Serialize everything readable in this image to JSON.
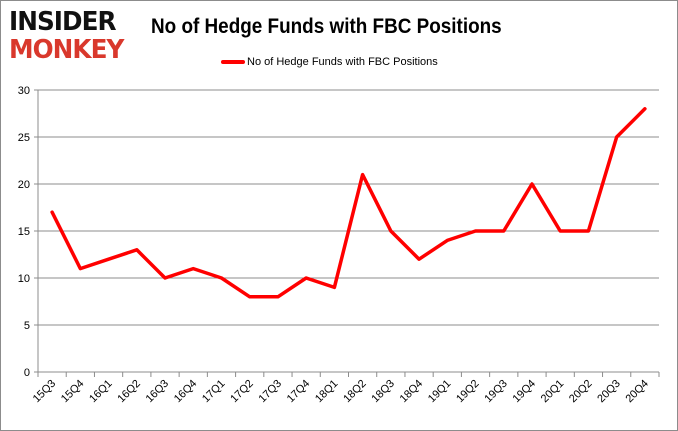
{
  "logo": {
    "line1": "INSIDER",
    "line2": "MONKEY"
  },
  "chart_data": {
    "type": "line",
    "title": "No of Hedge Funds with FBC Positions",
    "xlabel": "",
    "ylabel": "",
    "categories": [
      "15Q3",
      "15Q4",
      "16Q1",
      "16Q2",
      "16Q3",
      "16Q4",
      "17Q1",
      "17Q2",
      "17Q3",
      "17Q4",
      "18Q1",
      "18Q2",
      "18Q3",
      "18Q4",
      "19Q1",
      "19Q2",
      "19Q3",
      "19Q4",
      "20Q1",
      "20Q2",
      "20Q3",
      "20Q4"
    ],
    "series": [
      {
        "name": "No of Hedge Funds with FBC Positions",
        "color": "#ff0000",
        "values": [
          17,
          11,
          12,
          13,
          10,
          11,
          10,
          8,
          8,
          10,
          9,
          21,
          15,
          12,
          14,
          15,
          15,
          20,
          15,
          15,
          25,
          28
        ]
      }
    ],
    "ylim": [
      0,
      30
    ],
    "yticks": [
      0,
      5,
      10,
      15,
      20,
      25,
      30
    ],
    "grid": true,
    "legend": "top-center"
  }
}
